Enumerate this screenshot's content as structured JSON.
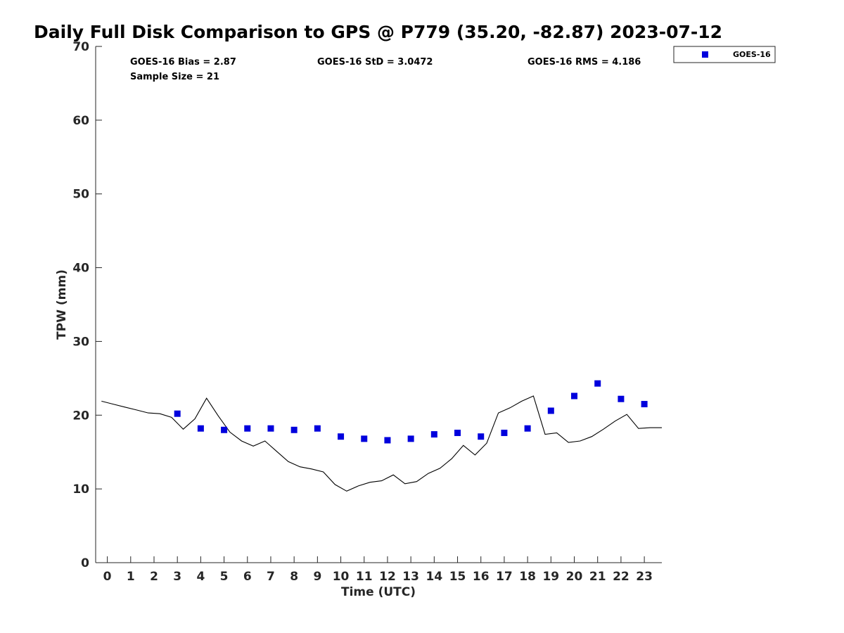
{
  "title": "Daily Full Disk Comparison to GPS @ P779 (35.20, -82.87) 2023-07-12",
  "stats": {
    "bias": "GOES-16 Bias = 2.87",
    "sample_size": "Sample Size = 21",
    "std": "GOES-16 StD = 3.0472",
    "rms": "GOES-16 RMS = 4.186"
  },
  "legend": {
    "label": "GOES-16",
    "position": "top-right, outside plot"
  },
  "colors": {
    "goes_marker": "#0000dd",
    "gps_line": "#000000",
    "axis": "#262626"
  },
  "chart_data": {
    "type": "scatter",
    "xlabel": "Time (UTC)",
    "ylabel": "TPW (mm)",
    "xlim": [
      -0.5,
      23.75
    ],
    "ylim": [
      0,
      70
    ],
    "xticks": [
      0,
      1,
      2,
      3,
      4,
      5,
      6,
      7,
      8,
      9,
      10,
      11,
      12,
      13,
      14,
      15,
      16,
      17,
      18,
      19,
      20,
      21,
      22,
      23
    ],
    "yticks": [
      0,
      10,
      20,
      30,
      40,
      50,
      60,
      70
    ],
    "grid": false,
    "series": [
      {
        "name": "GOES-16",
        "style": "square markers",
        "x": [
          3,
          4,
          5,
          6,
          7,
          8,
          9,
          10,
          11,
          12,
          13,
          14,
          15,
          16,
          17,
          18,
          19,
          20,
          21,
          22,
          23
        ],
        "y": [
          20.2,
          18.2,
          18.0,
          18.2,
          18.2,
          18.0,
          18.2,
          17.1,
          16.8,
          16.6,
          16.8,
          17.4,
          17.6,
          17.1,
          17.6,
          18.2,
          20.6,
          22.6,
          24.3,
          22.2,
          21.5
        ]
      },
      {
        "style": "line",
        "x": [
          -0.25,
          0.25,
          0.75,
          1.25,
          1.75,
          2.25,
          2.75,
          3.25,
          3.75,
          4.25,
          4.75,
          5.25,
          5.75,
          6.25,
          6.75,
          7.25,
          7.75,
          8.25,
          8.75,
          9.25,
          9.75,
          10.25,
          10.75,
          11.25,
          11.75,
          12.25,
          12.75,
          13.25,
          13.75,
          14.25,
          14.75,
          15.25,
          15.75,
          16.25,
          16.75,
          17.25,
          17.75,
          18.25,
          18.75,
          19.25,
          19.75,
          20.25,
          20.75,
          21.25,
          21.75,
          22.25,
          22.75,
          23.25,
          23.75
        ],
        "y": [
          21.9,
          21.5,
          21.1,
          20.7,
          20.3,
          20.2,
          19.7,
          18.1,
          19.5,
          22.3,
          19.9,
          17.7,
          16.5,
          15.8,
          16.5,
          15.1,
          13.7,
          13.0,
          12.7,
          12.3,
          10.6,
          9.7,
          10.4,
          10.9,
          11.1,
          11.9,
          10.7,
          11.0,
          12.1,
          12.8,
          14.1,
          15.9,
          14.6,
          16.2,
          20.3,
          21.0,
          21.9,
          22.6,
          17.4,
          17.6,
          16.3,
          16.5,
          17.1,
          18.1,
          19.2,
          20.1,
          18.2,
          18.3,
          18.3
        ]
      }
    ]
  }
}
